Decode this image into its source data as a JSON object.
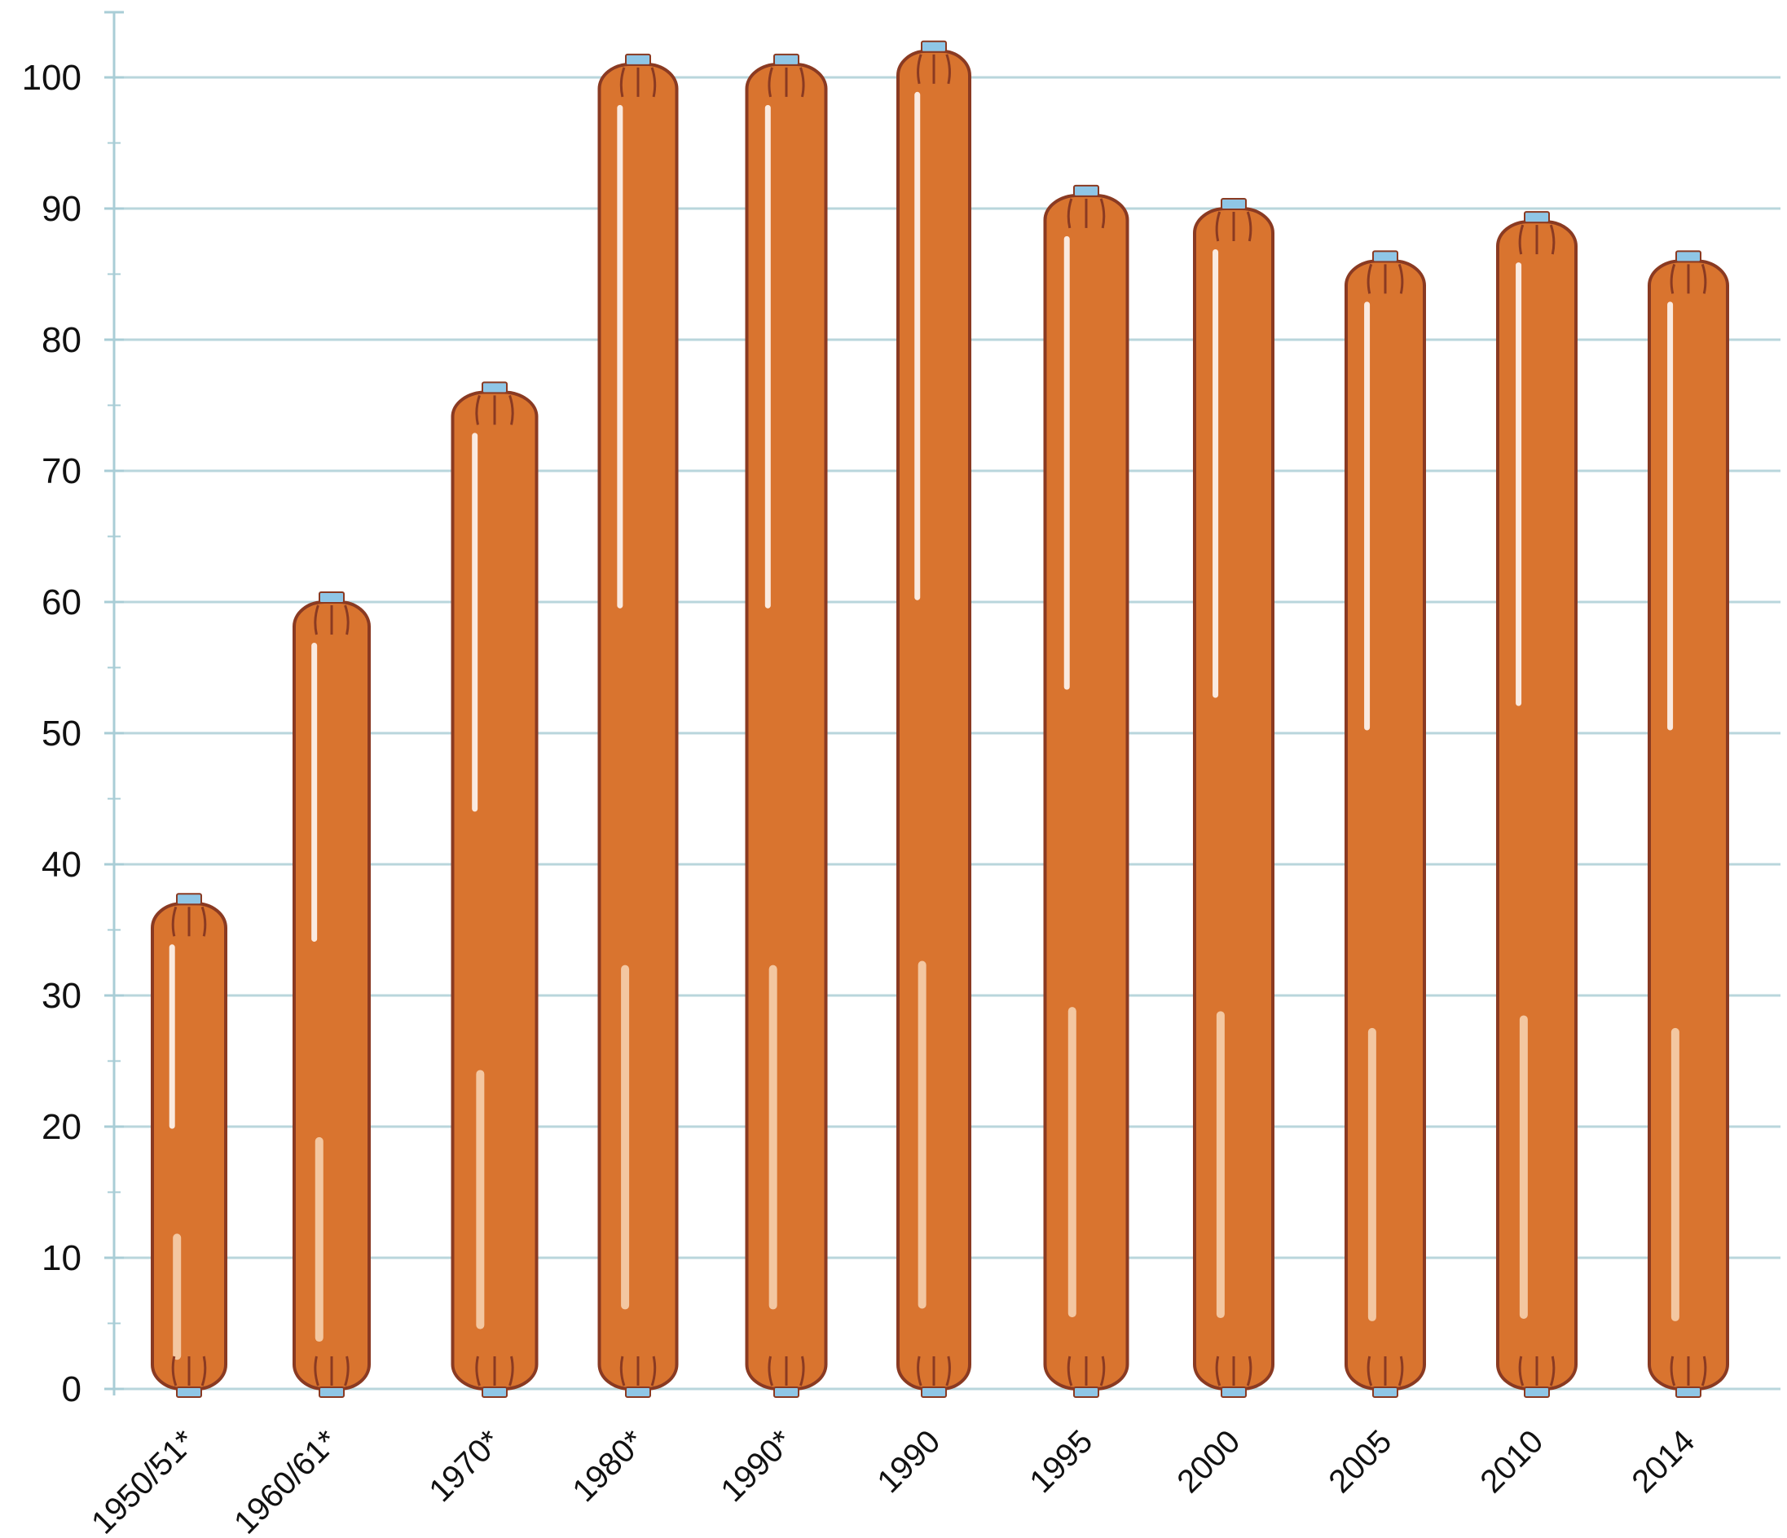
{
  "chart_data": {
    "type": "bar",
    "title": "",
    "xlabel": "",
    "ylabel": "",
    "categories": [
      "1950/51*",
      "1960/61*",
      "1970*",
      "1980*",
      "1990*",
      "1990",
      "1995",
      "2000",
      "2005",
      "2010",
      "2014"
    ],
    "values": [
      37,
      60,
      76,
      101,
      101,
      102,
      91,
      90,
      86,
      89,
      86
    ],
    "ylim": [
      0,
      100
    ],
    "yticks": [
      0,
      10,
      20,
      30,
      40,
      50,
      60,
      70,
      80,
      90,
      100
    ],
    "grid": true,
    "legend": "none"
  },
  "colors": {
    "bar_fill": "#d9742f",
    "bar_outline": "#8a3a22",
    "tie": "#8fc6e6",
    "highlight": "#fbe3c8",
    "grid": "#b9d6dc",
    "axis": "#a9cdd6"
  }
}
